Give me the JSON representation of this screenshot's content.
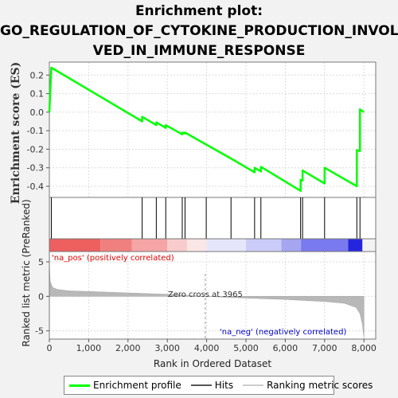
{
  "title_lines": [
    "Enrichment plot:",
    "GO_REGULATION_OF_CYTOKINE_PRODUCTION_INVOL",
    "VED_IN_IMMUNE_RESPONSE"
  ],
  "colors": {
    "es_line": "#00ff00",
    "hits": "#000000",
    "metric_fill": "#b8b8b8",
    "pos_red": "#ff0000",
    "neg_blue": "#0000ff",
    "pos_label": "#dd0000",
    "neg_label": "#0000cc"
  },
  "chart_data": [
    {
      "type": "line",
      "name": "enrichment-profile",
      "ylabel": "Enrichment score (ES)",
      "xlim": [
        0,
        8300
      ],
      "ylim": [
        -0.46,
        0.27
      ],
      "yticks": [
        0.2,
        0.1,
        0.0,
        -0.1,
        -0.2,
        -0.3,
        -0.4
      ],
      "ytick_labels": [
        "0.2",
        "0.1",
        "0.0",
        "-0.1",
        "-0.2",
        "-0.3",
        "-0.4"
      ],
      "grid": true,
      "x": [
        0,
        50,
        2360,
        2360,
        2720,
        2720,
        2960,
        2960,
        3380,
        3380,
        3450,
        3450,
        3990,
        3990,
        4620,
        4620,
        5220,
        5220,
        5380,
        5380,
        6390,
        6390,
        6440,
        6440,
        7000,
        7000,
        7820,
        7820,
        7900,
        7900,
        8000
      ],
      "y": [
        0.0,
        0.24,
        -0.05,
        -0.025,
        -0.07,
        -0.055,
        -0.085,
        -0.07,
        -0.12,
        -0.11,
        -0.115,
        -0.11,
        -0.175,
        -0.175,
        -0.25,
        -0.25,
        -0.325,
        -0.3,
        -0.32,
        -0.295,
        -0.425,
        -0.365,
        -0.37,
        -0.315,
        -0.385,
        -0.3,
        -0.4,
        -0.205,
        -0.21,
        0.015,
        0.0
      ]
    },
    {
      "type": "hits",
      "name": "hits",
      "x": [
        50,
        2360,
        2720,
        2960,
        3380,
        3450,
        3990,
        4620,
        5220,
        5380,
        6390,
        6440,
        7000,
        7820,
        7900
      ]
    },
    {
      "type": "area",
      "name": "ranked-list-metric",
      "ylabel": "Ranked list metric (PreRanked)",
      "xlabel": "Rank in Ordered Dataset",
      "xlim": [
        0,
        8300
      ],
      "ylim": [
        -6.2,
        6.5
      ],
      "yticks": [
        5,
        0,
        -5
      ],
      "ytick_labels": [
        "5",
        "0",
        "-5"
      ],
      "xticks": [
        0,
        1000,
        2000,
        3000,
        4000,
        5000,
        6000,
        7000,
        8000
      ],
      "xtick_labels": [
        "0",
        "1,000",
        "2,000",
        "3,000",
        "4,000",
        "5,000",
        "6,000",
        "7,000",
        "8,000"
      ],
      "grid": true,
      "x": [
        0,
        20,
        80,
        200,
        500,
        1000,
        2000,
        3000,
        3965,
        5000,
        6000,
        7000,
        7500,
        7800,
        7900,
        7960,
        8000
      ],
      "y": [
        5.0,
        2.2,
        1.3,
        1.0,
        0.8,
        0.7,
        0.5,
        0.3,
        0.0,
        -0.25,
        -0.45,
        -0.75,
        -1.0,
        -1.6,
        -2.5,
        -4.0,
        -6.0
      ],
      "zero_cross_label": "Zero cross at 3965",
      "zero_cross": 3965,
      "pos_label": "'na_pos' (positively correlated)",
      "neg_label": "'na_neg' (negatively correlated)"
    }
  ],
  "colorbar_segments": [
    {
      "x0": 0,
      "x1": 1300,
      "color": "#ee5f5f"
    },
    {
      "x0": 1300,
      "x1": 2100,
      "color": "#f08080"
    },
    {
      "x0": 2100,
      "x1": 3000,
      "color": "#f5a5a5"
    },
    {
      "x0": 3000,
      "x1": 3500,
      "color": "#f8cccc"
    },
    {
      "x0": 3500,
      "x1": 4000,
      "color": "#fbe6e6"
    },
    {
      "x0": 4000,
      "x1": 5000,
      "color": "#e6e6fb"
    },
    {
      "x0": 5000,
      "x1": 5900,
      "color": "#ccccf8"
    },
    {
      "x0": 5900,
      "x1": 6400,
      "color": "#a5a5f0"
    },
    {
      "x0": 6400,
      "x1": 7600,
      "color": "#7a7aee"
    },
    {
      "x0": 7600,
      "x1": 7960,
      "color": "#2525dd"
    }
  ],
  "legend": {
    "profile": "Enrichment profile",
    "hits": "Hits",
    "metric": "Ranking metric scores"
  }
}
